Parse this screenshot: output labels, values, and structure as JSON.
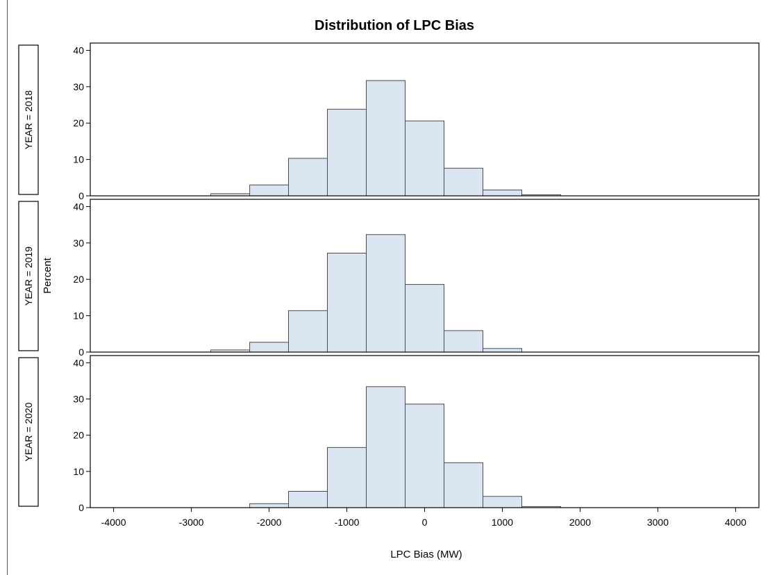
{
  "title": "Distribution of LPC Bias",
  "ylabel": "Percent",
  "xlabel": "LPC Bias (MW)",
  "colors": {
    "bar_fill": "#dbe4f1",
    "bar_stroke": "#4a4a4a",
    "frame": "#000000"
  },
  "chart_data": {
    "type": "bar",
    "title": "Distribution of LPC Bias",
    "xlabel": "LPC Bias (MW)",
    "ylabel": "Percent",
    "xlim": [
      -4300,
      4300
    ],
    "ylim": [
      0,
      42
    ],
    "x_ticks": [
      -4000,
      -3000,
      -2000,
      -1000,
      0,
      1000,
      2000,
      3000,
      4000
    ],
    "y_ticks": [
      0,
      10,
      20,
      30,
      40
    ],
    "bin_width": 500,
    "bin_centers": [
      -2500,
      -2000,
      -1500,
      -1000,
      -500,
      0,
      500,
      1000,
      1500
    ],
    "grid": false,
    "panels": [
      {
        "strip_label": "YEAR = 2018",
        "values": [
          0.6,
          3.0,
          10.3,
          23.8,
          31.7,
          20.6,
          7.6,
          1.6,
          0.3
        ]
      },
      {
        "strip_label": "YEAR = 2019",
        "values": [
          0.6,
          2.7,
          11.4,
          27.2,
          32.3,
          18.6,
          5.9,
          1.0,
          0.0
        ]
      },
      {
        "strip_label": "YEAR = 2020",
        "values": [
          0.0,
          1.1,
          4.5,
          16.6,
          33.4,
          28.6,
          12.4,
          3.1,
          0.3
        ]
      }
    ]
  }
}
